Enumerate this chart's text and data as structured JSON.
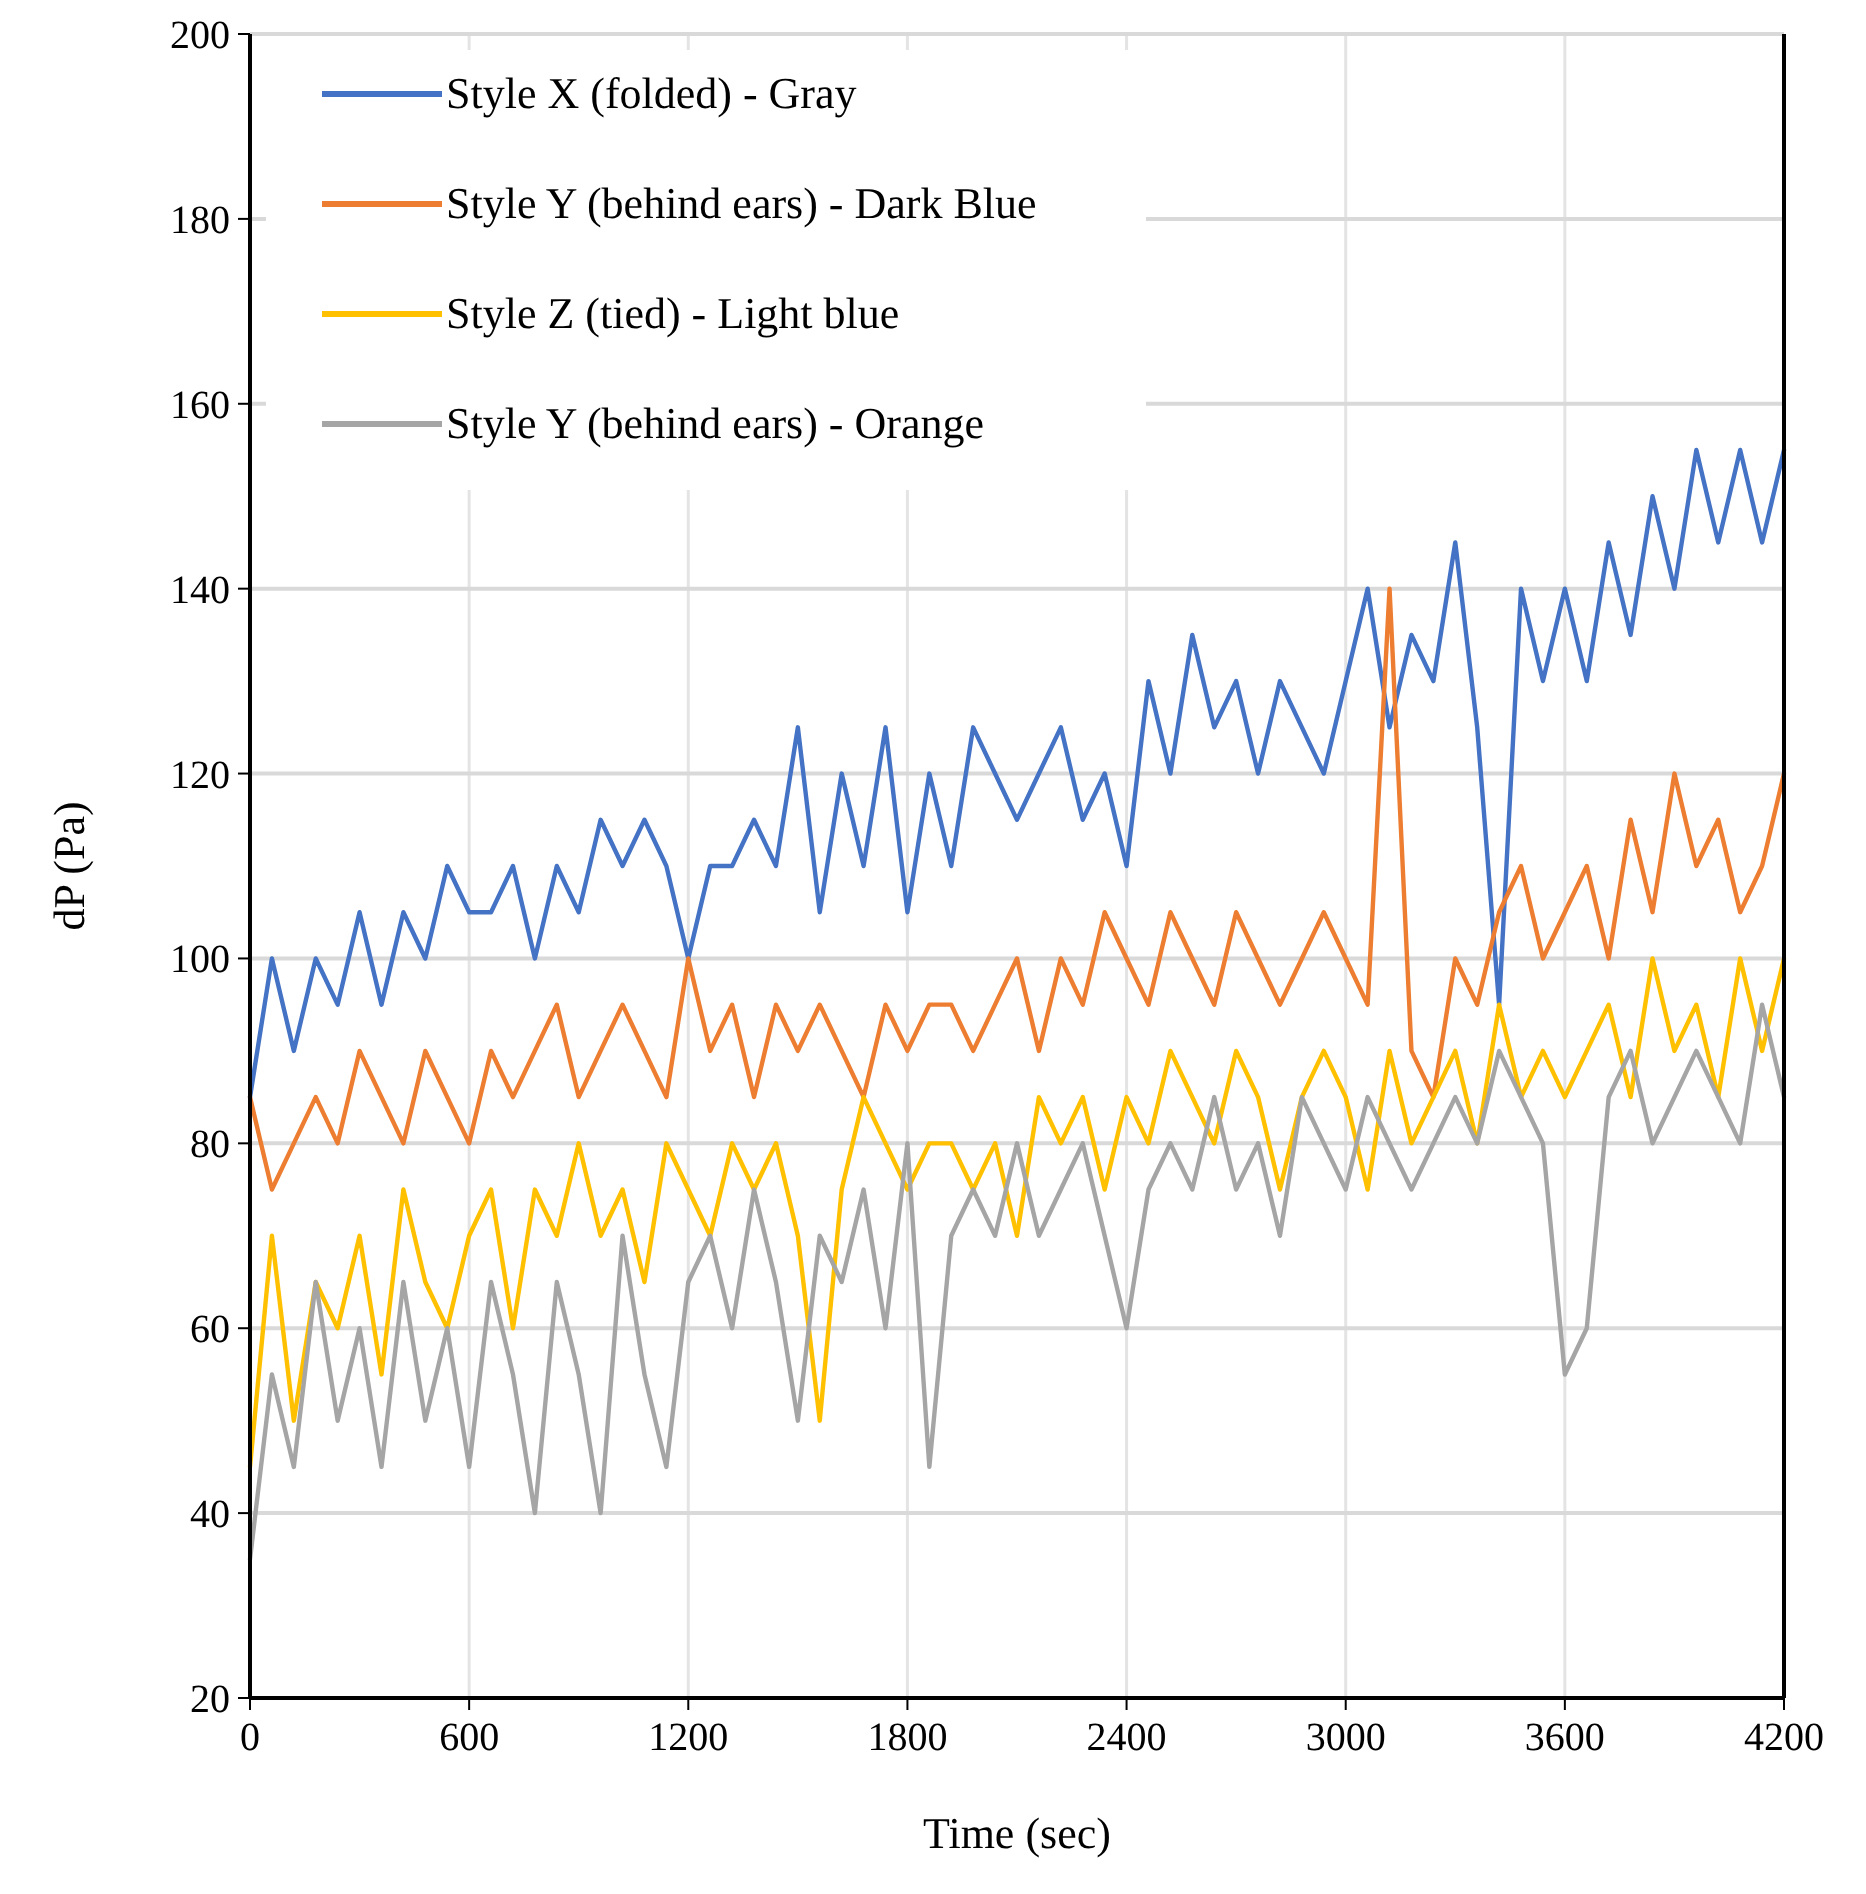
{
  "chart_data": {
    "type": "line",
    "xlabel": "Time (sec)",
    "ylabel": "dP (Pa)",
    "xlim": [
      0,
      4200
    ],
    "xticks": [
      0,
      600,
      1200,
      1800,
      2400,
      3000,
      3600,
      4200
    ],
    "ylim": [
      20,
      200
    ],
    "yticks": [
      20,
      40,
      60,
      80,
      100,
      120,
      140,
      160,
      180,
      200
    ],
    "grid": true,
    "legend": "top left",
    "line_style": "solid",
    "x": [
      0,
      60,
      120,
      180,
      240,
      300,
      360,
      420,
      480,
      540,
      600,
      660,
      720,
      780,
      840,
      900,
      960,
      1020,
      1080,
      1140,
      1200,
      1260,
      1320,
      1380,
      1440,
      1500,
      1560,
      1620,
      1680,
      1740,
      1800,
      1860,
      1920,
      1980,
      2040,
      2100,
      2160,
      2220,
      2280,
      2340,
      2400,
      2460,
      2520,
      2580,
      2640,
      2700,
      2760,
      2820,
      2880,
      2940,
      3000,
      3060,
      3120,
      3180,
      3240,
      3300,
      3360,
      3420,
      3480,
      3540,
      3600,
      3660,
      3720,
      3780,
      3840,
      3900,
      3960,
      4020,
      4080,
      4140,
      4200
    ],
    "series": [
      {
        "name": "Style X (folded) - Gray",
        "color": "#4472c4",
        "values": [
          85,
          100,
          90,
          100,
          95,
          105,
          95,
          105,
          100,
          110,
          105,
          105,
          110,
          100,
          110,
          105,
          115,
          110,
          115,
          110,
          100,
          110,
          110,
          115,
          110,
          125,
          105,
          120,
          110,
          125,
          105,
          120,
          110,
          125,
          120,
          115,
          120,
          125,
          115,
          120,
          110,
          130,
          120,
          135,
          125,
          130,
          120,
          130,
          125,
          120,
          130,
          140,
          125,
          135,
          130,
          145,
          125,
          95,
          140,
          130,
          140,
          130,
          145,
          135,
          150,
          140,
          155,
          145,
          155,
          145,
          155
        ]
      },
      {
        "name": "Style Y (behind ears) - Dark Blue",
        "color": "#ed7d31",
        "values": [
          85,
          75,
          80,
          85,
          80,
          90,
          85,
          80,
          90,
          85,
          80,
          90,
          85,
          90,
          95,
          85,
          90,
          95,
          90,
          85,
          100,
          90,
          95,
          85,
          95,
          90,
          95,
          90,
          85,
          95,
          90,
          95,
          95,
          90,
          95,
          100,
          90,
          100,
          95,
          105,
          100,
          95,
          105,
          100,
          95,
          105,
          100,
          95,
          100,
          105,
          100,
          95,
          140,
          90,
          85,
          100,
          95,
          105,
          110,
          100,
          105,
          110,
          100,
          115,
          105,
          120,
          110,
          115,
          105,
          110,
          120
        ]
      },
      {
        "name": "Style Z (tied) - Light blue",
        "color": "#ffc000",
        "values": [
          45,
          70,
          50,
          65,
          60,
          70,
          55,
          75,
          65,
          60,
          70,
          75,
          60,
          75,
          70,
          80,
          70,
          75,
          65,
          80,
          75,
          70,
          80,
          75,
          80,
          70,
          50,
          75,
          85,
          80,
          75,
          80,
          80,
          75,
          80,
          70,
          85,
          80,
          85,
          75,
          85,
          80,
          90,
          85,
          80,
          90,
          85,
          75,
          85,
          90,
          85,
          75,
          90,
          80,
          85,
          90,
          80,
          95,
          85,
          90,
          85,
          90,
          95,
          85,
          100,
          90,
          95,
          85,
          100,
          90,
          100
        ]
      },
      {
        "name": "Style Y (behind ears) - Orange",
        "color": "#a5a5a5",
        "values": [
          35,
          55,
          45,
          65,
          50,
          60,
          45,
          65,
          50,
          60,
          45,
          65,
          55,
          40,
          65,
          55,
          40,
          70,
          55,
          45,
          65,
          70,
          60,
          75,
          65,
          50,
          70,
          65,
          75,
          60,
          80,
          45,
          70,
          75,
          70,
          80,
          70,
          75,
          80,
          70,
          60,
          75,
          80,
          75,
          85,
          75,
          80,
          70,
          85,
          80,
          75,
          85,
          80,
          75,
          80,
          85,
          80,
          90,
          85,
          80,
          55,
          60,
          85,
          90,
          80,
          85,
          90,
          85,
          80,
          95,
          85
        ]
      }
    ]
  }
}
